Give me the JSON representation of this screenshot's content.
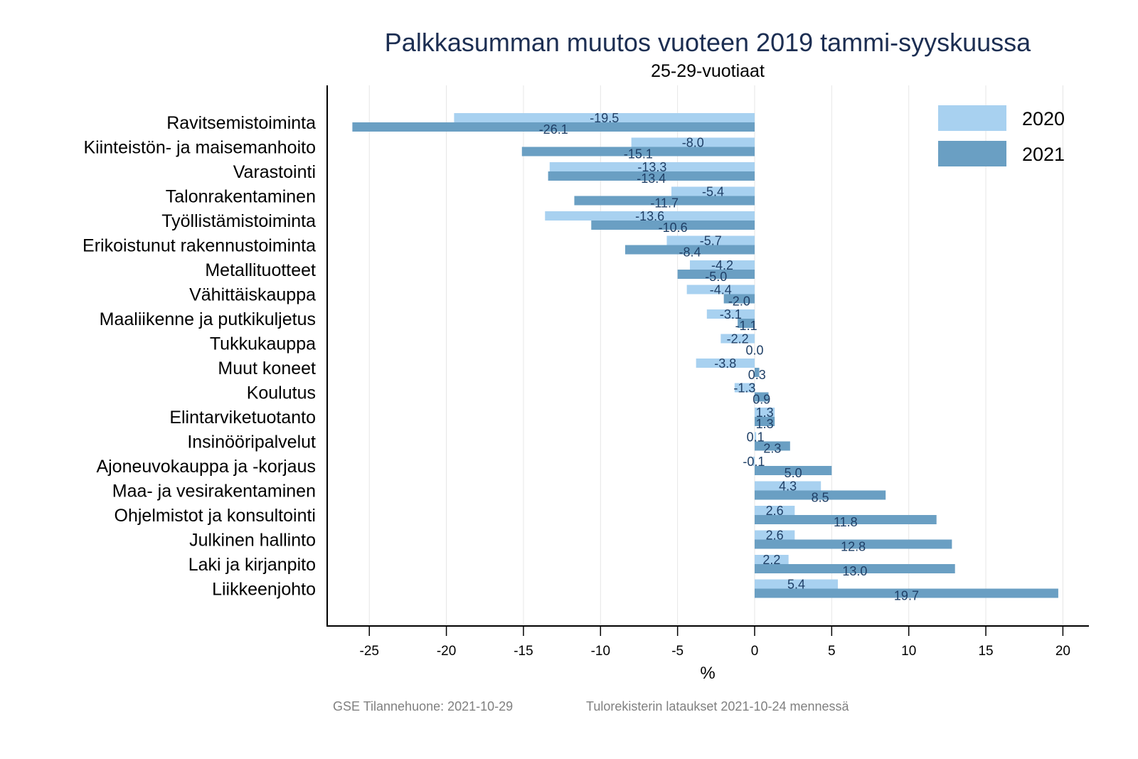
{
  "chart_data": {
    "type": "bar",
    "orientation": "horizontal",
    "title": "Palkkasumman muutos vuoteen 2019 tammi-syyskuussa",
    "subtitle": "25-29-vuotiaat",
    "xlabel": "%",
    "ylabel": "",
    "xlim": [
      -28,
      21.5
    ],
    "xticks": [
      -25,
      -20,
      -15,
      -10,
      -5,
      0,
      5,
      10,
      15,
      20
    ],
    "xtick_labels": [
      "-25",
      "-20",
      "-15",
      "-10",
      "-5",
      "0",
      "5",
      "10",
      "15",
      "20"
    ],
    "grid": "vertical",
    "legend_position": "top-right",
    "categories": [
      "Ravitsemistoiminta",
      "Kiinteistön- ja maisemanhoito",
      "Varastointi",
      "Talonrakentaminen",
      "Työllistämistoiminta",
      "Erikoistunut rakennustoiminta",
      "Metallituotteet",
      "Vähittäiskauppa",
      "Maaliikenne ja putkikuljetus",
      "Tukkukauppa",
      "Muut koneet",
      "Koulutus",
      "Elintarviketuotanto",
      "Insinööripalvelut",
      "Ajoneuvokauppa ja -korjaus",
      "Maa- ja vesirakentaminen",
      "Ohjelmistot ja konsultointi",
      "Julkinen hallinto",
      "Laki ja kirjanpito",
      "Liikkeenjohto"
    ],
    "series": [
      {
        "name": "2020",
        "color": "#a8d1f0",
        "values": [
          -19.5,
          -8.0,
          -13.3,
          -5.4,
          -13.6,
          -5.7,
          -4.2,
          -4.4,
          -3.1,
          -2.2,
          -3.8,
          -1.3,
          1.3,
          0.1,
          -0.1,
          4.3,
          2.6,
          2.6,
          2.2,
          5.4
        ],
        "labels": [
          "-19.5",
          "-8.0",
          "-13.3",
          "-5.4",
          "-13.6",
          "-5.7",
          "-4.2",
          "-4.4",
          "-3.1",
          "-2.2",
          "-3.8",
          "-1.3",
          "1.3",
          "0.1",
          "-0.1",
          "4.3",
          "2.6",
          "2.6",
          "2.2",
          "5.4"
        ]
      },
      {
        "name": "2021",
        "color": "#6a9fc3",
        "values": [
          -26.1,
          -15.1,
          -13.4,
          -11.7,
          -10.6,
          -8.4,
          -5.0,
          -2.0,
          -1.1,
          0.0,
          0.3,
          0.9,
          1.3,
          2.3,
          5.0,
          8.5,
          11.8,
          12.8,
          13.0,
          19.7
        ],
        "labels": [
          "-26.1",
          "-15.1",
          "-13.4",
          "-11.7",
          "-10.6",
          "-8.4",
          "-5.0",
          "-2.0",
          "-1.1",
          "0.0",
          "0.3",
          "0.9",
          "1.3",
          "2.3",
          "5.0",
          "8.5",
          "11.8",
          "12.8",
          "13.0",
          "19.7"
        ]
      }
    ],
    "footer": {
      "left": "GSE Tilannehuone: 2021-10-29",
      "right": "Tulorekisterin lataukset 2021-10-24 mennessä"
    }
  }
}
